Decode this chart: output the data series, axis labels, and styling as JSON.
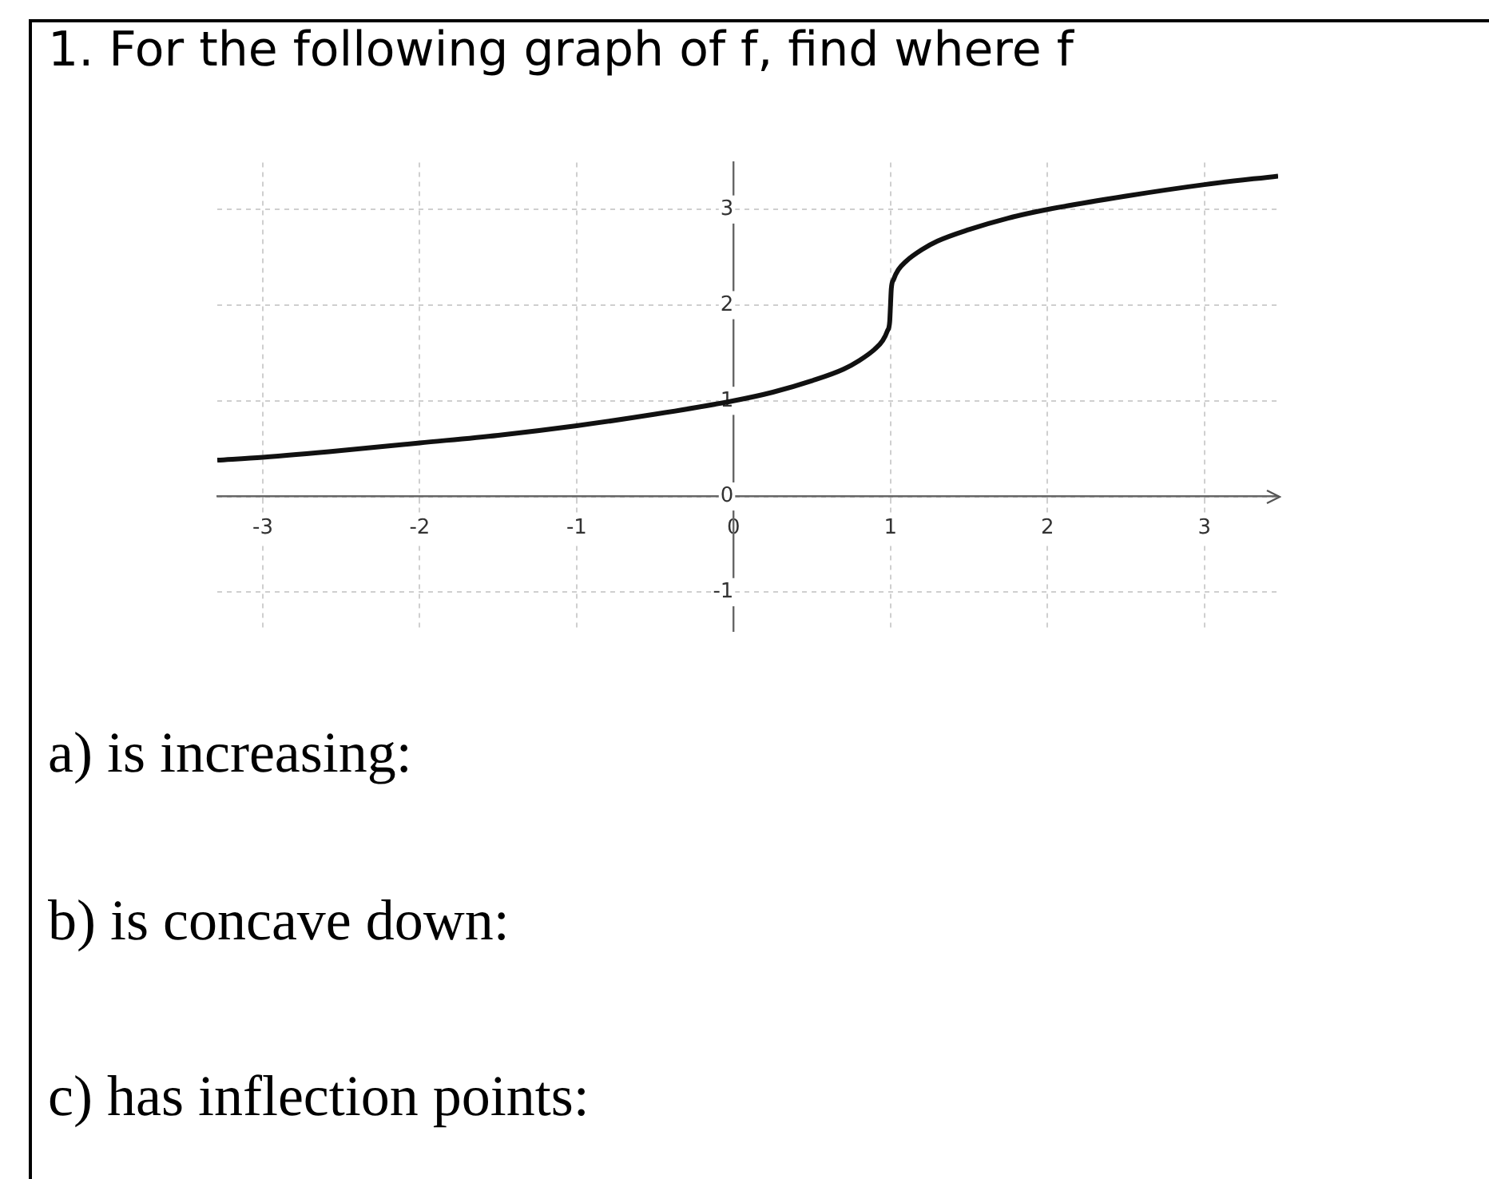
{
  "chart_data": {
    "type": "line",
    "title": "1. For the following graph of f, find where f",
    "x": [
      -3.29,
      -3,
      -2.5,
      -2,
      -1.5,
      -1,
      -0.5,
      0,
      0.25,
      0.5,
      0.7,
      0.8,
      0.9,
      0.95,
      0.98,
      0.995,
      1,
      1.005,
      1.02,
      1.05,
      1.1,
      1.2,
      1.3,
      1.5,
      1.75,
      2,
      2.5,
      3,
      3.47
    ],
    "series": [
      {
        "color": "#111111",
        "values": [
          0.38,
          0.41,
          0.48,
          0.56,
          0.64,
          0.74,
          0.86,
          1,
          1.09,
          1.21,
          1.33,
          1.42,
          1.54,
          1.63,
          1.73,
          1.83,
          2,
          2.17,
          2.27,
          2.37,
          2.46,
          2.58,
          2.67,
          2.79,
          2.91,
          3,
          3.14,
          3.26,
          3.35
        ]
      }
    ],
    "xlim": [
      -3.29,
      3.47
    ],
    "ylim": [
      -1.41,
      3.49
    ],
    "xticks": [
      -3,
      -2,
      -1,
      0,
      1,
      2,
      3
    ],
    "yticks": [
      -1,
      0,
      1,
      2,
      3
    ],
    "grid": true,
    "legend": false,
    "marker": "none",
    "line_style": "solid",
    "annotations": [
      "a) is increasing:",
      "b) is concave down:",
      "c) has inflection points:"
    ]
  }
}
